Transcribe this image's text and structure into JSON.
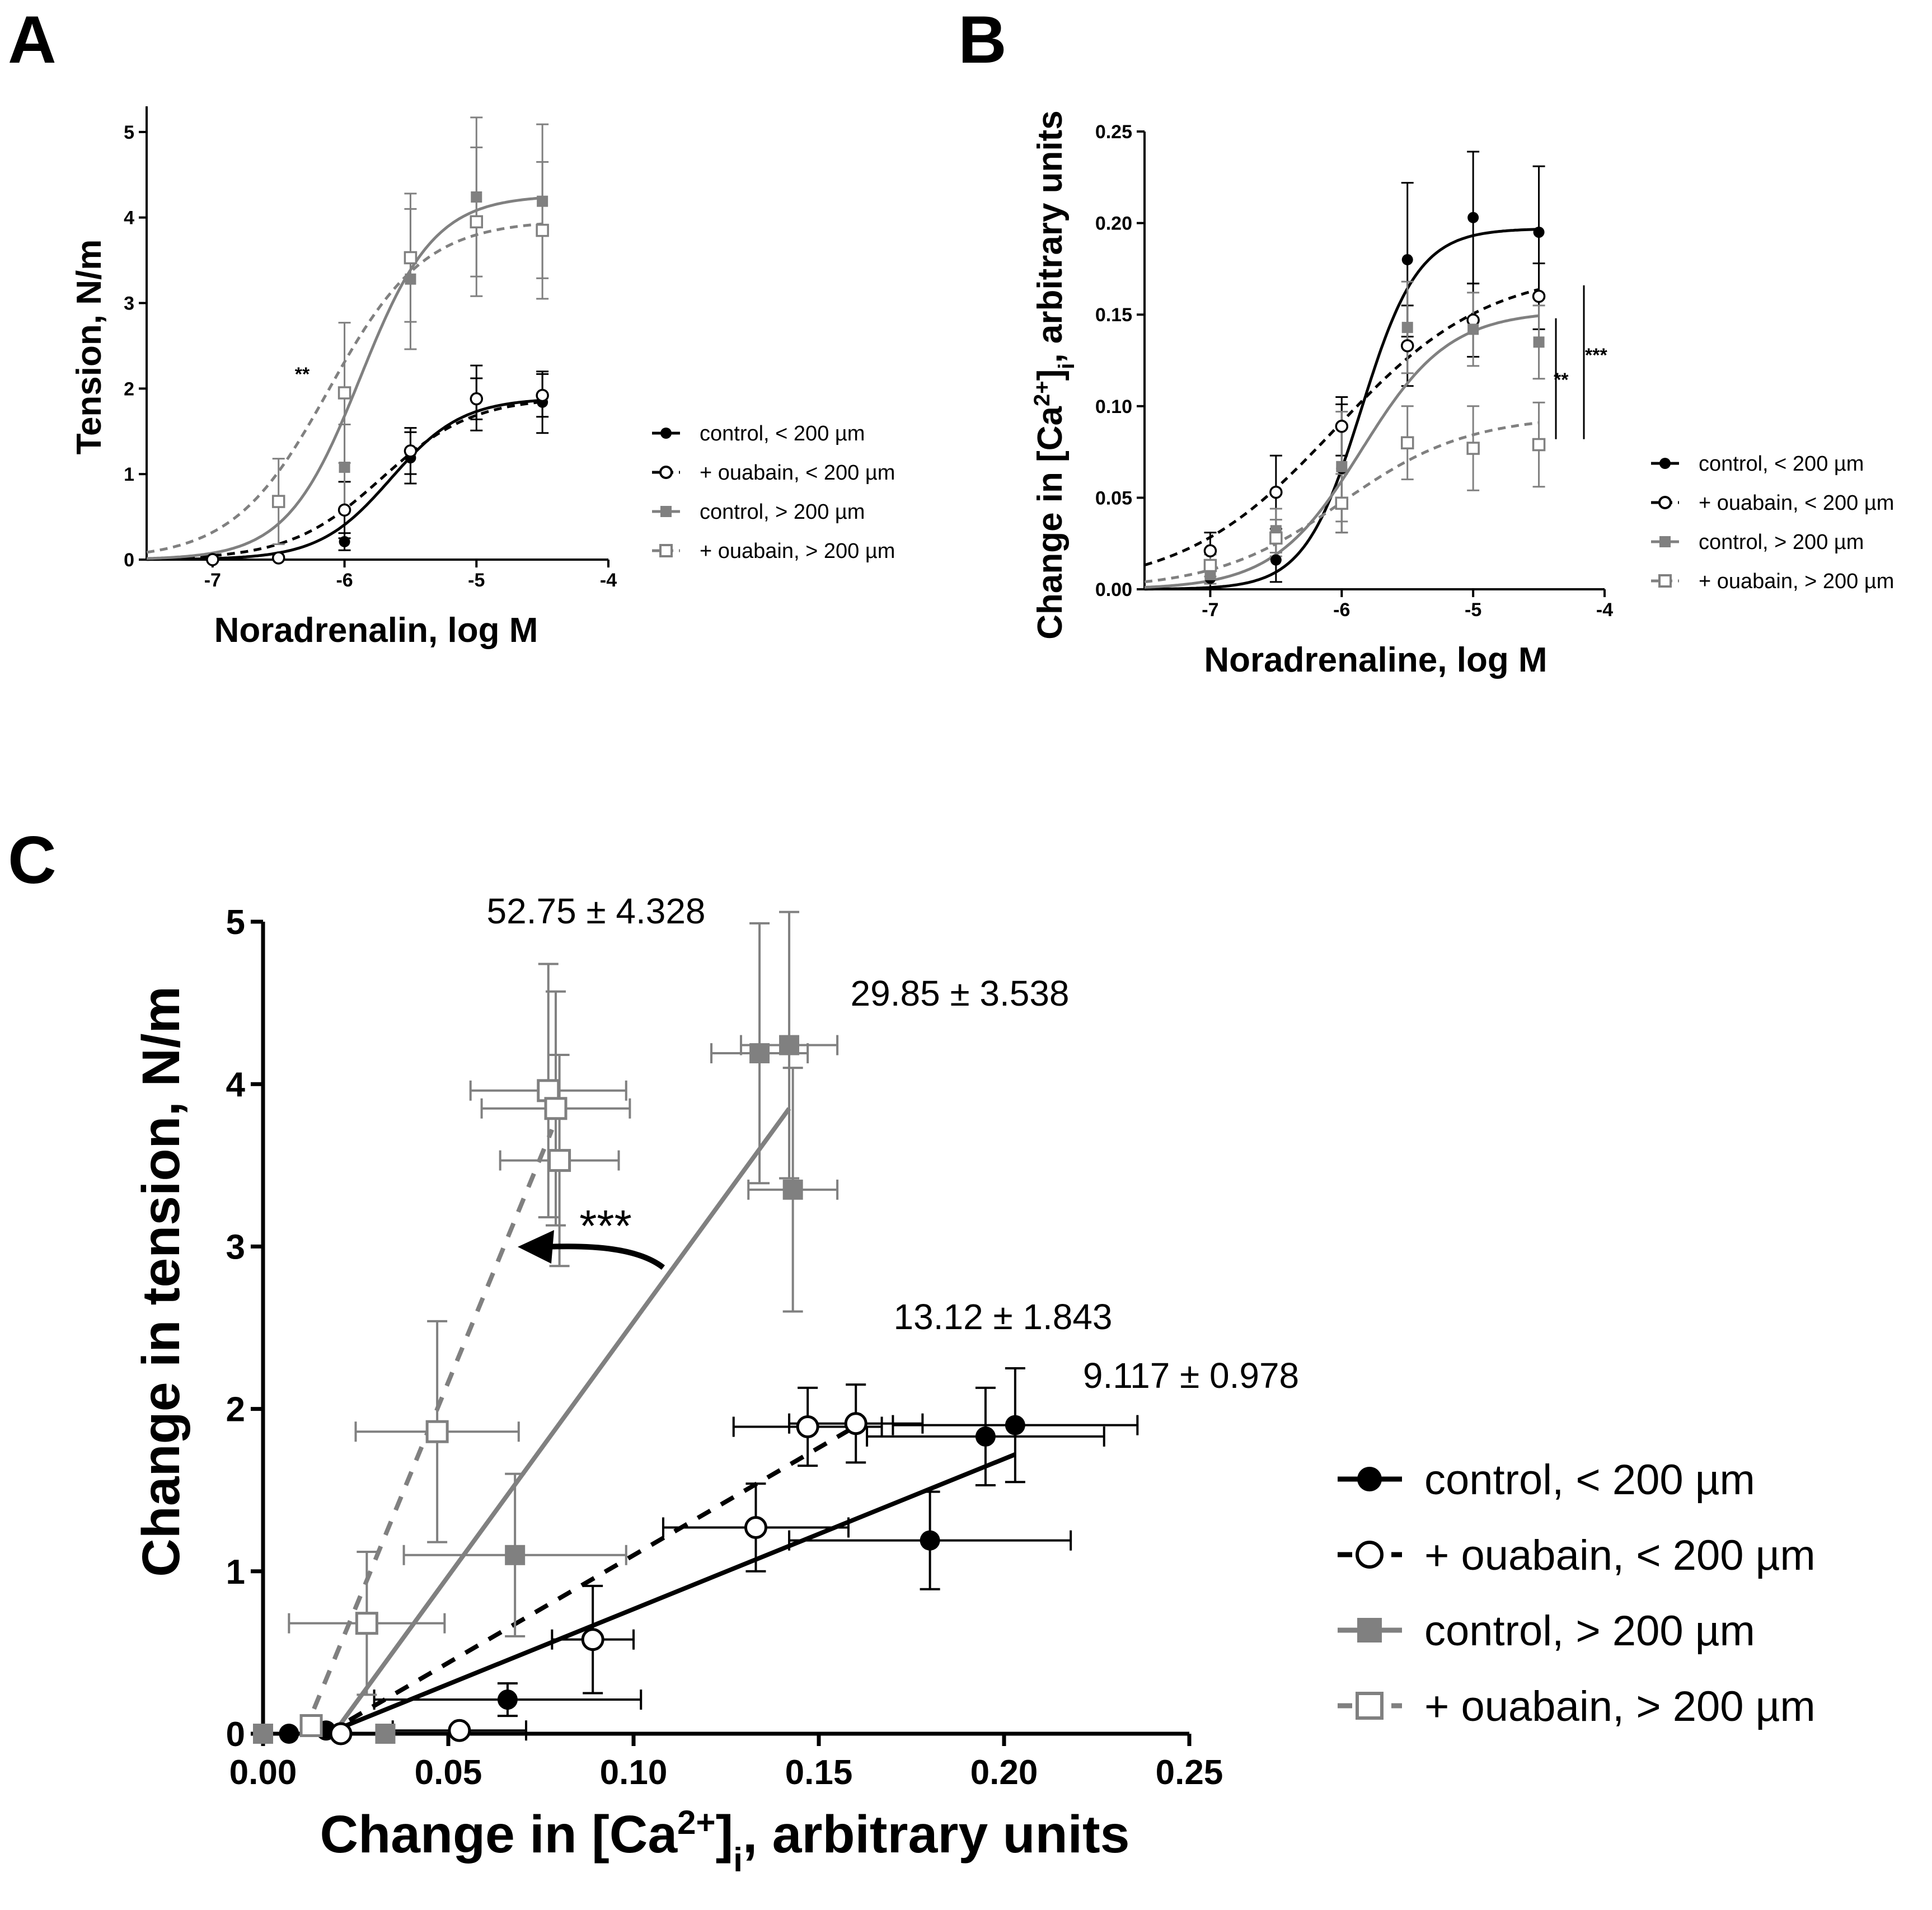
{
  "colors": {
    "black": "#000000",
    "gray": "#808080"
  },
  "chart_data": [
    {
      "panel": "A",
      "type": "line",
      "xlabel": "Noradrenalin, log M",
      "ylabel": "Tension, N/m",
      "xlim": [
        -7.5,
        -4
      ],
      "ylim": [
        0,
        5.3
      ],
      "x_ticks": [
        -7,
        -6,
        -5,
        -4
      ],
      "x_tick_labels": [
        "-7",
        "-6",
        "-5",
        "-4"
      ],
      "y_ticks": [
        0,
        1,
        2,
        3,
        4,
        5
      ],
      "y_tick_labels": [
        "0",
        "1",
        "2",
        "3",
        "4",
        "5"
      ],
      "legend_position": "right",
      "annotations": [
        {
          "text": "**",
          "x": -6.35,
          "y": 2.1
        }
      ],
      "series": [
        {
          "name": "control, < 200 µm",
          "color": "#000000",
          "marker": "circle-filled",
          "line": "solid",
          "x": [
            -7,
            -6.5,
            -6,
            -5.5,
            -5,
            -4.5
          ],
          "y": [
            0,
            0.02,
            0.21,
            1.19,
            1.89,
            1.84
          ],
          "err": [
            0,
            0.02,
            0.1,
            0.3,
            0.38,
            0.36
          ],
          "fit": {
            "bottom": 0,
            "top": 1.89,
            "logec50": -5.65,
            "hill": 1.6
          }
        },
        {
          "name": "+ ouabain, < 200 µm",
          "color": "#000000",
          "marker": "circle-open",
          "line": "dashed",
          "x": [
            -7,
            -6.5,
            -6,
            -5.5,
            -5,
            -4.5
          ],
          "y": [
            0,
            0.02,
            0.58,
            1.27,
            1.88,
            1.92
          ],
          "err": [
            0,
            0.02,
            0.33,
            0.27,
            0.24,
            0.25
          ],
          "fit": {
            "bottom": 0,
            "top": 1.9,
            "logec50": -5.72,
            "hill": 1.25
          }
        },
        {
          "name": "control, > 200 µm",
          "color": "#808080",
          "marker": "square-filled",
          "line": "solid",
          "x": [
            -6,
            -5.5,
            -5,
            -4.5
          ],
          "y": [
            1.08,
            3.28,
            4.24,
            4.19
          ],
          "err": [
            0.5,
            0.82,
            0.93,
            0.9
          ],
          "fit": {
            "bottom": 0,
            "top": 4.26,
            "logec50": -5.88,
            "hill": 1.55
          }
        },
        {
          "name": "+ ouabain, > 200 µm",
          "color": "#808080",
          "marker": "square-open",
          "line": "dashed",
          "x": [
            -6.5,
            -6,
            -5.5,
            -5,
            -4.5
          ],
          "y": [
            0.68,
            1.95,
            3.53,
            3.95,
            3.85
          ],
          "err": [
            0.5,
            0.82,
            0.75,
            0.87,
            0.8
          ],
          "fit": {
            "bottom": 0,
            "top": 3.97,
            "logec50": -6.12,
            "hill": 1.2
          }
        }
      ]
    },
    {
      "panel": "B",
      "type": "line",
      "xlabel": "Noradrenaline, log M",
      "ylabel": "Change in [Ca2+]i, arbitrary units",
      "xlim": [
        -7.5,
        -4
      ],
      "ylim": [
        0,
        0.25
      ],
      "x_ticks": [
        -7,
        -6,
        -5,
        -4
      ],
      "x_tick_labels": [
        "-7",
        "-6",
        "-5",
        "-4"
      ],
      "y_ticks": [
        0,
        0.05,
        0.1,
        0.15,
        0.2,
        0.25
      ],
      "y_tick_labels": [
        "0.00",
        "0.05",
        "0.10",
        "0.15",
        "0.20",
        "0.25"
      ],
      "legend_position": "right",
      "significance": [
        {
          "text": "**",
          "y_range": [
            0.082,
            0.148
          ]
        },
        {
          "text": "***",
          "y_range": [
            0.082,
            0.166
          ]
        }
      ],
      "series": [
        {
          "name": "control, < 200 µm",
          "color": "#000000",
          "marker": "circle-filled",
          "line": "solid",
          "x": [
            -7,
            -6.5,
            -6,
            -5.5,
            -5,
            -4.5
          ],
          "y": [
            0.006,
            0.016,
            0.066,
            0.18,
            0.203,
            0.195
          ],
          "err": [
            0.005,
            0.012,
            0.035,
            0.042,
            0.036,
            0.036
          ],
          "fit": {
            "bottom": 0,
            "top": 0.197,
            "logec50": -5.85,
            "hill": 2.0
          }
        },
        {
          "name": "+ ouabain, < 200 µm",
          "color": "#000000",
          "marker": "circle-open",
          "line": "dashed",
          "x": [
            -7,
            -6.5,
            -6,
            -5.5,
            -5,
            -4.5
          ],
          "y": [
            0.021,
            0.053,
            0.089,
            0.133,
            0.147,
            0.16
          ],
          "err": [
            0.01,
            0.02,
            0.016,
            0.022,
            0.02,
            0.018
          ],
          "fit": {
            "bottom": 0,
            "top": 0.175,
            "logec50": -6.05,
            "hill": 0.75
          }
        },
        {
          "name": "control, > 200 µm",
          "color": "#808080",
          "marker": "square-filled",
          "line": "solid",
          "x": [
            -7,
            -6.5,
            -6,
            -5.5,
            -5,
            -4.5
          ],
          "y": [
            0.008,
            0.032,
            0.067,
            0.143,
            0.142,
            0.135
          ],
          "err": [
            0.005,
            0.012,
            0.03,
            0.025,
            0.02,
            0.02
          ],
          "fit": {
            "bottom": 0,
            "top": 0.152,
            "logec50": -5.85,
            "hill": 1.3
          }
        },
        {
          "name": "+ ouabain, > 200 µm",
          "color": "#808080",
          "marker": "square-open",
          "line": "dashed",
          "x": [
            -7,
            -6.5,
            -6,
            -5.5,
            -5,
            -4.5
          ],
          "y": [
            0.013,
            0.028,
            0.047,
            0.08,
            0.077,
            0.079
          ],
          "err": [
            0.006,
            0.01,
            0.016,
            0.02,
            0.023,
            0.023
          ],
          "fit": {
            "bottom": 0,
            "top": 0.095,
            "logec50": -6.0,
            "hill": 0.9
          }
        }
      ]
    },
    {
      "panel": "C",
      "type": "scatter",
      "xlabel": "Change in [Ca2+]i, arbitrary units",
      "ylabel": "Change in tension, N/m",
      "xlim": [
        0,
        0.25
      ],
      "ylim": [
        0,
        5
      ],
      "x_ticks": [
        0,
        0.05,
        0.1,
        0.15,
        0.2,
        0.25
      ],
      "x_tick_labels": [
        "0.00",
        "0.05",
        "0.10",
        "0.15",
        "0.20",
        "0.25"
      ],
      "y_ticks": [
        0,
        1,
        2,
        3,
        4,
        5
      ],
      "y_tick_labels": [
        "0",
        "1",
        "2",
        "3",
        "4",
        "5"
      ],
      "legend_position": "right",
      "slope_labels": [
        {
          "text": "52.75 ± 4.328",
          "x": 0.056,
          "y": 5.02
        },
        {
          "text": "29.85 ± 3.538",
          "x": 0.155,
          "y": 4.6
        },
        {
          "text": "13.12 ± 1.843",
          "x": 0.166,
          "y": 2.7
        },
        {
          "text": "9.117 ± 0.978",
          "x": 0.218,
          "y": 2.2
        }
      ],
      "arrow_annotation": {
        "text": "***",
        "from": [
          0.108,
          2.88
        ],
        "to": [
          0.068,
          3.0
        ]
      },
      "series": [
        {
          "name": "control, < 200 µm",
          "color": "#000000",
          "marker": "circle-filled",
          "line": "solid",
          "x": [
            0.0,
            0.007,
            0.017,
            0.066,
            0.18,
            0.195,
            0.203
          ],
          "y": [
            0.0,
            0.0,
            0.02,
            0.21,
            1.19,
            1.83,
            1.9
          ],
          "xerr": [
            0,
            0,
            0,
            0.036,
            0.038,
            0.032,
            0.033
          ],
          "yerr": [
            0,
            0,
            0,
            0.1,
            0.3,
            0.3,
            0.35
          ],
          "regression": {
            "x": [
              0.017,
              0.203
            ],
            "y": [
              0.0,
              1.72
            ]
          }
        },
        {
          "name": "+ ouabain, < 200 µm",
          "color": "#000000",
          "marker": "circle-open",
          "line": "dashed",
          "x": [
            0.021,
            0.053,
            0.089,
            0.133,
            0.147,
            0.16
          ],
          "y": [
            0.0,
            0.02,
            0.58,
            1.27,
            1.89,
            1.91
          ],
          "xerr": [
            0,
            0.018,
            0.011,
            0.025,
            0.02,
            0.018
          ],
          "yerr": [
            0,
            0.02,
            0.33,
            0.27,
            0.24,
            0.24
          ],
          "regression": {
            "x": [
              0.017,
              0.162
            ],
            "y": [
              0.0,
              1.92
            ]
          }
        },
        {
          "name": "control, > 200 µm",
          "color": "#808080",
          "marker": "square-filled",
          "line": "solid",
          "x": [
            0.0,
            0.033,
            0.068,
            0.134,
            0.142,
            0.143
          ],
          "y": [
            0.0,
            0.0,
            1.1,
            4.19,
            4.24,
            3.35
          ],
          "xerr": [
            0,
            0,
            0.03,
            0.013,
            0.013,
            0.012
          ],
          "yerr": [
            0,
            0,
            0.5,
            0.8,
            0.82,
            0.75
          ],
          "regression": {
            "x": [
              0.019,
              0.142
            ],
            "y": [
              0.0,
              3.85
            ]
          }
        },
        {
          "name": "+ ouabain, > 200 µm",
          "color": "#808080",
          "marker": "square-open",
          "line": "dashed",
          "x": [
            0.013,
            0.028,
            0.047,
            0.077,
            0.079,
            0.08
          ],
          "y": [
            0.05,
            0.68,
            1.86,
            3.96,
            3.85,
            3.53
          ],
          "xerr": [
            0,
            0.021,
            0.022,
            0.021,
            0.02,
            0.016
          ],
          "yerr": [
            0,
            0.44,
            0.68,
            0.78,
            0.72,
            0.65
          ],
          "regression": {
            "x": [
              0.011,
              0.078
            ],
            "y": [
              0.0,
              3.72
            ]
          }
        }
      ]
    }
  ],
  "panels": {
    "A": {
      "letter": "A",
      "xlabel": "Noradrenalin, log M",
      "ylabel": "Tension, N/m",
      "stars": "**",
      "legend": [
        "control, < 200 µm",
        "+ ouabain, < 200 µm",
        "control, > 200 µm",
        "+ ouabain, > 200 µm"
      ]
    },
    "B": {
      "letter": "B",
      "xlabel": "Noradrenaline, log M",
      "ylabel_main": "Change in [Ca",
      "ylabel_sup": "2+",
      "ylabel_close": "]",
      "ylabel_sub": "i",
      "ylabel_rest": ", arbitrary units",
      "stars_1": "**",
      "stars_2": "***",
      "legend": [
        "control, < 200 µm",
        "+ ouabain, < 200 µm",
        "control, > 200 µm",
        "+ ouabain, > 200 µm"
      ]
    },
    "C": {
      "letter": "C",
      "xlabel_main": "Change in [Ca",
      "xlabel_sup": "2+",
      "xlabel_close": "]",
      "xlabel_sub": "i",
      "xlabel_rest": ", arbitrary units",
      "ylabel": "Change in tension, N/m",
      "slope_1": "52.75 ± 4.328",
      "slope_2": "29.85 ± 3.538",
      "slope_3": "13.12 ± 1.843",
      "slope_4": "9.117 ± 0.978",
      "arrow_stars": "***",
      "legend": [
        "control, < 200 µm",
        "+ ouabain, < 200 µm",
        "control, > 200 µm",
        "+ ouabain, > 200 µm"
      ]
    }
  }
}
